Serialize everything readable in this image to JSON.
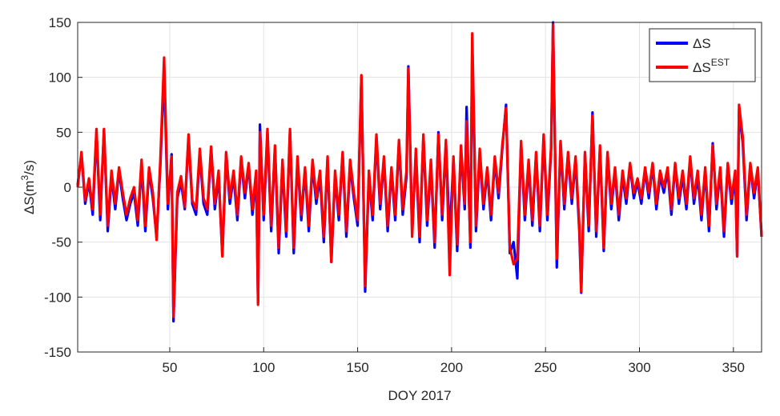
{
  "chart_data": {
    "type": "line",
    "xlabel": "DOY 2017",
    "ylabel": [
      "ΔS(m",
      "3",
      "/s)"
    ],
    "xlim": [
      1,
      365
    ],
    "xticks": [
      50,
      100,
      150,
      200,
      250,
      300,
      350
    ],
    "ylim": [
      -150,
      150
    ],
    "yticks": [
      -150,
      -100,
      -50,
      0,
      50,
      100,
      150
    ],
    "grid": true,
    "legend": "upper right",
    "x": [
      1,
      3,
      5,
      7,
      9,
      11,
      13,
      15,
      17,
      19,
      21,
      23,
      25,
      27,
      29,
      31,
      33,
      35,
      37,
      39,
      41,
      43,
      45,
      47,
      49,
      51,
      52,
      54,
      56,
      58,
      60,
      62,
      64,
      66,
      68,
      70,
      72,
      74,
      76,
      78,
      80,
      82,
      84,
      86,
      88,
      90,
      92,
      94,
      96,
      97,
      98,
      100,
      102,
      104,
      106,
      108,
      110,
      112,
      114,
      116,
      118,
      120,
      122,
      124,
      126,
      128,
      130,
      132,
      134,
      136,
      138,
      140,
      142,
      144,
      146,
      148,
      150,
      152,
      154,
      156,
      158,
      160,
      162,
      164,
      166,
      168,
      170,
      172,
      174,
      176,
      177,
      179,
      181,
      183,
      185,
      187,
      189,
      191,
      193,
      195,
      197,
      199,
      201,
      203,
      205,
      207,
      208,
      210,
      211,
      213,
      215,
      217,
      219,
      221,
      223,
      225,
      227,
      229,
      231,
      233,
      235,
      237,
      239,
      241,
      243,
      245,
      247,
      249,
      251,
      253,
      254,
      256,
      258,
      260,
      262,
      264,
      266,
      268,
      269,
      271,
      273,
      275,
      277,
      279,
      281,
      283,
      285,
      287,
      289,
      291,
      293,
      295,
      297,
      299,
      301,
      303,
      305,
      307,
      309,
      311,
      313,
      315,
      317,
      319,
      321,
      323,
      325,
      327,
      329,
      331,
      333,
      335,
      337,
      339,
      341,
      343,
      345,
      347,
      349,
      351,
      352,
      353,
      355,
      357,
      359,
      361,
      363,
      365
    ],
    "series": [
      {
        "name": "ΔS",
        "color": "#0000ff",
        "values": [
          2,
          30,
          -15,
          5,
          -25,
          50,
          -30,
          52,
          -40,
          10,
          -20,
          15,
          -10,
          -30,
          -15,
          -5,
          -35,
          20,
          -40,
          15,
          -10,
          -45,
          20,
          105,
          -20,
          30,
          -122,
          -10,
          5,
          -20,
          45,
          -15,
          -25,
          30,
          -15,
          -25,
          35,
          -20,
          10,
          -62,
          30,
          -15,
          10,
          -30,
          25,
          -10,
          20,
          -25,
          10,
          -105,
          57,
          -30,
          50,
          -40,
          35,
          -60,
          20,
          -45,
          50,
          -60,
          25,
          -30,
          15,
          -40,
          20,
          -15,
          10,
          -50,
          25,
          -68,
          10,
          -30,
          30,
          -45,
          20,
          -10,
          -35,
          100,
          -95,
          10,
          -30,
          45,
          -20,
          25,
          -40,
          15,
          -30,
          40,
          -25,
          10,
          110,
          -40,
          30,
          -50,
          45,
          -35,
          20,
          -55,
          50,
          -30,
          40,
          -45,
          25,
          -58,
          35,
          -20,
          73,
          -55,
          130,
          -40,
          30,
          -20,
          15,
          -30,
          25,
          -10,
          35,
          75,
          -60,
          -50,
          -83,
          40,
          -30,
          20,
          -35,
          30,
          -40,
          45,
          -30,
          35,
          150,
          -73,
          40,
          -20,
          30,
          -15,
          25,
          -40,
          -96,
          30,
          -40,
          68,
          -45,
          35,
          -58,
          30,
          -20,
          15,
          -30,
          10,
          -15,
          20,
          -10,
          5,
          -15,
          15,
          -10,
          20,
          -20,
          10,
          -5,
          15,
          -25,
          20,
          -15,
          10,
          -20,
          25,
          -15,
          10,
          -30,
          15,
          -40,
          40,
          -20,
          15,
          -45,
          20,
          -15,
          10,
          -63,
          70,
          40,
          -30,
          20,
          -10,
          15,
          -45
        ]
      },
      {
        "name": "ΔS",
        "superscript": "EST",
        "color": "#ff0000",
        "values": [
          0,
          32,
          -12,
          8,
          -20,
          53,
          -25,
          53,
          -35,
          15,
          -15,
          18,
          -5,
          -25,
          -10,
          0,
          -30,
          25,
          -35,
          18,
          -5,
          -48,
          25,
          118,
          -15,
          28,
          -118,
          -5,
          10,
          -18,
          48,
          -12,
          -20,
          35,
          -10,
          -20,
          37,
          -15,
          15,
          -63,
          32,
          -10,
          15,
          -25,
          28,
          -5,
          22,
          -20,
          15,
          -107,
          50,
          -25,
          53,
          -35,
          38,
          -55,
          25,
          -40,
          53,
          -55,
          28,
          -25,
          18,
          -35,
          25,
          -10,
          15,
          -45,
          28,
          -68,
          15,
          -25,
          32,
          -40,
          25,
          -5,
          -30,
          102,
          -90,
          15,
          -25,
          48,
          -15,
          28,
          -35,
          18,
          -25,
          43,
          -20,
          15,
          108,
          -45,
          35,
          -45,
          48,
          -30,
          25,
          -50,
          48,
          -25,
          43,
          -80,
          28,
          -52,
          38,
          -15,
          60,
          -50,
          140,
          -35,
          35,
          -15,
          18,
          -25,
          28,
          -5,
          38,
          72,
          -55,
          -70,
          -65,
          42,
          -25,
          25,
          -30,
          32,
          -35,
          48,
          -25,
          38,
          148,
          -65,
          42,
          -15,
          32,
          -10,
          28,
          -35,
          -95,
          32,
          -35,
          65,
          -40,
          38,
          -55,
          32,
          -15,
          18,
          -25,
          15,
          -10,
          22,
          -5,
          8,
          -10,
          18,
          -5,
          22,
          -15,
          15,
          0,
          18,
          -20,
          22,
          -10,
          15,
          -15,
          28,
          -10,
          15,
          -25,
          18,
          -35,
          38,
          -15,
          18,
          -40,
          22,
          -10,
          15,
          -63,
          75,
          45,
          -25,
          22,
          -5,
          18,
          -45
        ]
      }
    ]
  }
}
